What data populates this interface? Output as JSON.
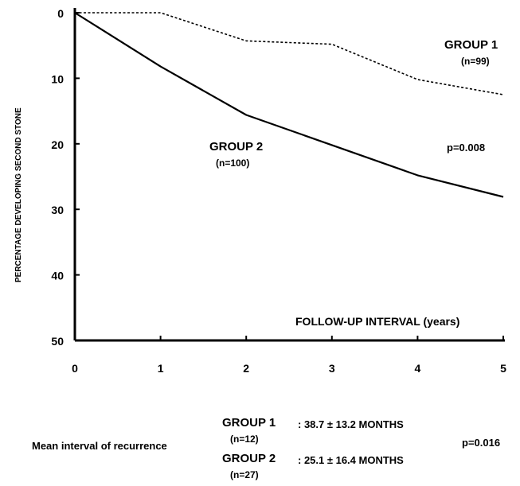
{
  "chart_data": {
    "type": "line",
    "xlabel": "FOLLOW-UP INTERVAL (years)",
    "ylabel": "PERCENTAGE DEVELOPING SECOND STONE",
    "x_ticks": [
      "0",
      "1",
      "2",
      "3",
      "4",
      "5"
    ],
    "y_ticks": [
      "0",
      "10",
      "20",
      "30",
      "40",
      "50"
    ],
    "xlim": [
      0,
      5
    ],
    "ylim": [
      0,
      50
    ],
    "y_inverted": true,
    "series": [
      {
        "name": "GROUP 1",
        "n_label": "(n=99)",
        "style": "dashed",
        "x": [
          0,
          1,
          2,
          3,
          4,
          5
        ],
        "y": [
          0,
          0,
          4.3,
          4.8,
          10.2,
          12.5
        ]
      },
      {
        "name": "GROUP 2",
        "n_label": "(n=100)",
        "style": "solid",
        "x": [
          0,
          1,
          2,
          3,
          4,
          5
        ],
        "y": [
          0,
          8.2,
          15.6,
          20.2,
          24.8,
          28.1
        ]
      }
    ],
    "annotations": {
      "p_value": "p=0.008"
    }
  },
  "summary": {
    "label": "Mean interval of recurrence",
    "rows": [
      {
        "group": "GROUP 1",
        "n": "(n=12)",
        "value": ": 38.7 ± 13.2 MONTHS"
      },
      {
        "group": "GROUP 2",
        "n": "(n=27)",
        "value": ": 25.1 ± 16.4 MONTHS"
      }
    ],
    "p_value": "p=0.016"
  },
  "colors": {
    "line": "#000000",
    "background": "#ffffff"
  }
}
